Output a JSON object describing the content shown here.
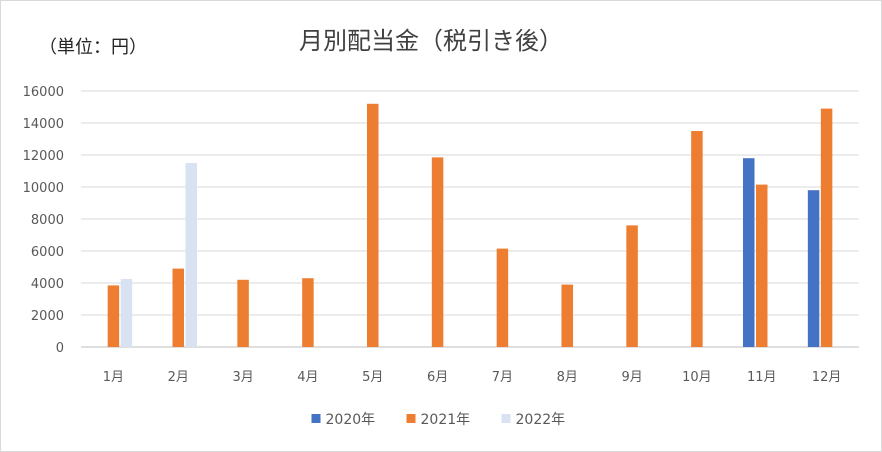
{
  "chart_data": {
    "type": "bar",
    "title": "月別配当金（税引き後）",
    "unit_label": "（単位：円）",
    "categories": [
      "1月",
      "2月",
      "3月",
      "4月",
      "5月",
      "6月",
      "7月",
      "8月",
      "9月",
      "10月",
      "11月",
      "12月"
    ],
    "series": [
      {
        "name": "2020年",
        "color": "#4472C4",
        "values": [
          null,
          null,
          null,
          null,
          null,
          null,
          null,
          null,
          null,
          null,
          11800,
          9800
        ]
      },
      {
        "name": "2021年",
        "color": "#ED7D31",
        "values": [
          3850,
          4900,
          4200,
          4300,
          15200,
          11850,
          6150,
          3900,
          7600,
          13500,
          10150,
          14900
        ]
      },
      {
        "name": "2022年",
        "color": "#D9E2F3",
        "values": [
          4250,
          11500,
          null,
          null,
          null,
          null,
          null,
          null,
          null,
          null,
          null,
          null
        ]
      }
    ],
    "ylim": [
      0,
      16000
    ],
    "yticks": [
      "0",
      "2000",
      "4000",
      "6000",
      "8000",
      "10000",
      "12000",
      "14000",
      "16000"
    ],
    "grid": true,
    "legend_position": "bottom"
  }
}
